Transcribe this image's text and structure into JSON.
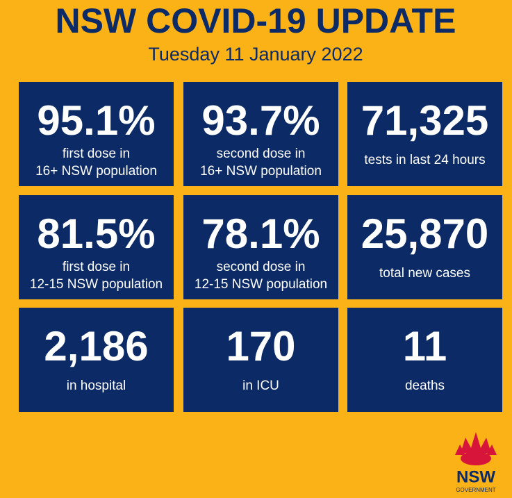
{
  "header": {
    "title": "NSW COVID-19 UPDATE",
    "date": "Tuesday 11 January 2022"
  },
  "tiles": [
    {
      "value": "95.1%",
      "label": [
        "first dose in",
        "16+ NSW population"
      ]
    },
    {
      "value": "93.7%",
      "label": [
        "second dose in",
        "16+ NSW population"
      ]
    },
    {
      "value": "71,325",
      "label": [
        "tests in last 24 hours"
      ]
    },
    {
      "value": "81.5%",
      "label": [
        "first dose in",
        "12-15 NSW population"
      ]
    },
    {
      "value": "78.1%",
      "label": [
        "second dose in",
        "12-15 NSW population"
      ]
    },
    {
      "value": "25,870",
      "label": [
        "total new cases"
      ]
    },
    {
      "value": "2,186",
      "label": [
        "in hospital"
      ]
    },
    {
      "value": "170",
      "label": [
        "in ICU"
      ]
    },
    {
      "value": "11",
      "label": [
        "deaths"
      ]
    }
  ],
  "logo": {
    "name": "NSW",
    "sub": "GOVERNMENT"
  }
}
